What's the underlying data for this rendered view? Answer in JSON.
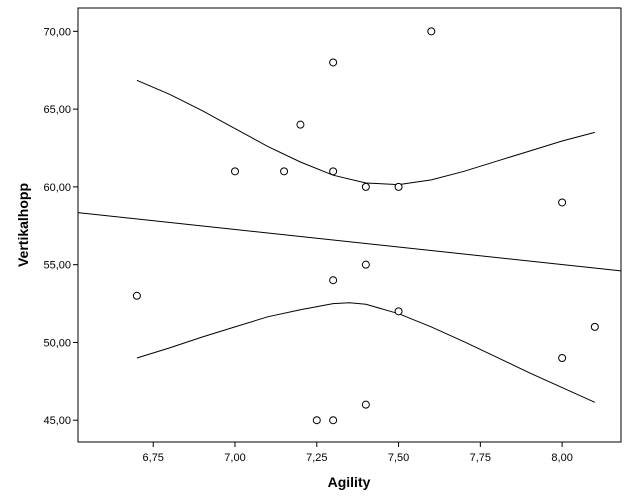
{
  "chart_data": {
    "type": "scatter",
    "title": "",
    "xlabel": "Agility",
    "ylabel": "Vertikalhopp",
    "xlim": [
      6.52,
      8.18
    ],
    "ylim": [
      43.6,
      71.5
    ],
    "x_ticks": [
      6.75,
      7.0,
      7.25,
      7.5,
      7.75,
      8.0
    ],
    "x_tick_labels": [
      "6,75",
      "7,00",
      "7,25",
      "7,50",
      "7,75",
      "8,00"
    ],
    "y_ticks": [
      45,
      50,
      55,
      60,
      65,
      70
    ],
    "y_tick_labels": [
      "45,00",
      "50,00",
      "55,00",
      "60,00",
      "65,00",
      "70,00"
    ],
    "grid": false,
    "points": [
      {
        "x": 6.7,
        "y": 53.0
      },
      {
        "x": 7.0,
        "y": 61.0
      },
      {
        "x": 7.15,
        "y": 61.0
      },
      {
        "x": 7.2,
        "y": 64.0
      },
      {
        "x": 7.25,
        "y": 45.0
      },
      {
        "x": 7.3,
        "y": 68.0
      },
      {
        "x": 7.3,
        "y": 61.0
      },
      {
        "x": 7.3,
        "y": 54.0
      },
      {
        "x": 7.3,
        "y": 45.0
      },
      {
        "x": 7.4,
        "y": 60.0
      },
      {
        "x": 7.4,
        "y": 55.0
      },
      {
        "x": 7.4,
        "y": 46.0
      },
      {
        "x": 7.5,
        "y": 60.0
      },
      {
        "x": 7.5,
        "y": 52.0
      },
      {
        "x": 7.6,
        "y": 70.0
      },
      {
        "x": 8.0,
        "y": 59.0
      },
      {
        "x": 8.0,
        "y": 49.0
      },
      {
        "x": 8.1,
        "y": 51.0
      }
    ],
    "fit_line": {
      "x": [
        6.52,
        8.18
      ],
      "y": [
        58.35,
        54.6
      ]
    },
    "upper_band": {
      "x": [
        6.7,
        6.8,
        6.9,
        7.0,
        7.1,
        7.2,
        7.3,
        7.4,
        7.5,
        7.6,
        7.7,
        7.8,
        7.9,
        8.0,
        8.1
      ],
      "y": [
        66.85,
        65.95,
        64.9,
        63.75,
        62.6,
        61.6,
        60.75,
        60.25,
        60.15,
        60.45,
        61.0,
        61.65,
        62.3,
        62.95,
        63.5
      ]
    },
    "lower_band": {
      "x": [
        6.7,
        6.8,
        6.9,
        7.0,
        7.1,
        7.2,
        7.3,
        7.35,
        7.4,
        7.5,
        7.6,
        7.7,
        7.8,
        7.9,
        8.0,
        8.1
      ],
      "y": [
        49.0,
        49.65,
        50.35,
        51.0,
        51.65,
        52.1,
        52.5,
        52.55,
        52.45,
        51.85,
        51.0,
        50.05,
        49.05,
        48.05,
        47.1,
        46.15
      ]
    }
  }
}
